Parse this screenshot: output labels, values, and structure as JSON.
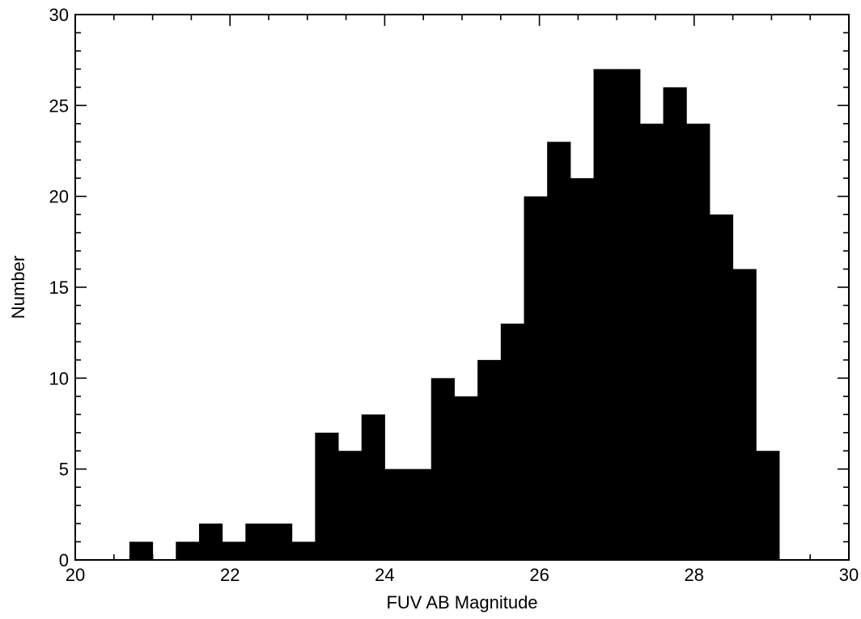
{
  "chart_data": {
    "type": "bar",
    "title": "",
    "xlabel": "FUV AB Magnitude",
    "ylabel": "Number",
    "xlim": [
      20,
      30
    ],
    "ylim": [
      0,
      30
    ],
    "x_ticks": [
      20,
      22,
      24,
      26,
      28,
      30
    ],
    "y_ticks": [
      0,
      5,
      10,
      15,
      20,
      25,
      30
    ],
    "bin_width": 0.3,
    "bin_start": 20.1,
    "values": [
      0,
      0,
      1,
      0,
      1,
      2,
      1,
      2,
      2,
      1,
      7,
      6,
      8,
      5,
      5,
      10,
      9,
      11,
      13,
      20,
      23,
      21,
      27,
      27,
      24,
      26,
      24,
      19,
      16,
      6
    ],
    "grid": false,
    "bar_color": "#000000"
  }
}
